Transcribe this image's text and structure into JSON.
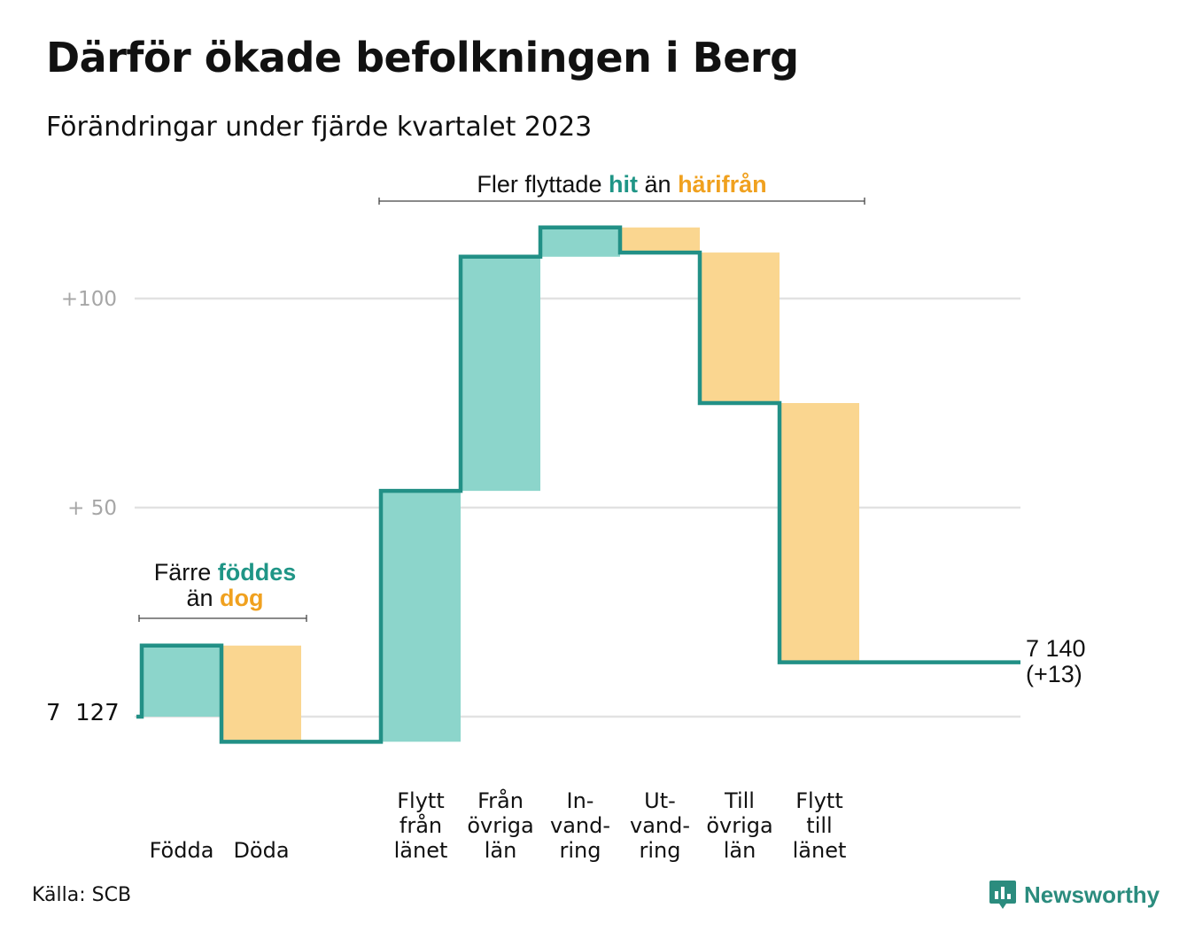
{
  "title": "Därför ökade befolkningen i Berg",
  "subtitle": "Förändringar under fjärde kvartalet 2023",
  "annotations": {
    "births": {
      "word1": "Färre",
      "word2": "föddes",
      "word3": "än",
      "word4": "dog"
    },
    "migration": {
      "word1": "Fler flyttade",
      "word2": "hit",
      "word3": "än",
      "word4": "härifrån"
    }
  },
  "start_label": "7  127",
  "end_label": {
    "line1": "7 140",
    "line2": "(+13)"
  },
  "source": "Källa: SCB",
  "brand": {
    "name": "Newsworthy",
    "icon": "chart-bubble-icon"
  },
  "colors": {
    "increase": "#8cd5cb",
    "decrease": "#fad690",
    "line": "#229086",
    "grid": "#e2e2e2",
    "tick": "#a6a6a6",
    "increase_text": "#1f9586",
    "decrease_text": "#f0a11f"
  },
  "chart_data": {
    "type": "waterfall",
    "title": "Därför ökade befolkningen i Berg",
    "subtitle": "Förändringar under fjärde kvartalet 2023",
    "baseline_label": "7  127",
    "start_value": 0,
    "end_value": 13,
    "ylim": [
      -6,
      120
    ],
    "y_ticks": [
      {
        "value": 50,
        "label": "+  50"
      },
      {
        "value": 100,
        "label": "+100"
      }
    ],
    "grid": true,
    "steps": [
      {
        "label": "Födda",
        "label_lines": [
          "Födda"
        ],
        "change": 17,
        "kind": "increase"
      },
      {
        "label": "Döda",
        "label_lines": [
          "Döda"
        ],
        "change": -23,
        "kind": "decrease"
      },
      {
        "label": "",
        "label_lines": [],
        "change": 0,
        "kind": "gap"
      },
      {
        "label": "Flytt från länet",
        "label_lines": [
          "Flytt",
          "från",
          "länet"
        ],
        "change": 60,
        "kind": "increase"
      },
      {
        "label": "Från övriga län",
        "label_lines": [
          "Från",
          "övriga",
          "län"
        ],
        "change": 56,
        "kind": "increase"
      },
      {
        "label": "In-vandring",
        "label_lines": [
          "In-",
          "vand-",
          "ring"
        ],
        "change": 7,
        "kind": "increase"
      },
      {
        "label": "Ut-vandring",
        "label_lines": [
          "Ut-",
          "vand-",
          "ring"
        ],
        "change": -6,
        "kind": "decrease"
      },
      {
        "label": "Till övriga län",
        "label_lines": [
          "Till",
          "övriga",
          "län"
        ],
        "change": -36,
        "kind": "decrease"
      },
      {
        "label": "Flytt till länet",
        "label_lines": [
          "Flytt",
          "till",
          "länet"
        ],
        "change": -62,
        "kind": "decrease"
      },
      {
        "label": "",
        "label_lines": [],
        "change": 0,
        "kind": "end"
      }
    ]
  }
}
